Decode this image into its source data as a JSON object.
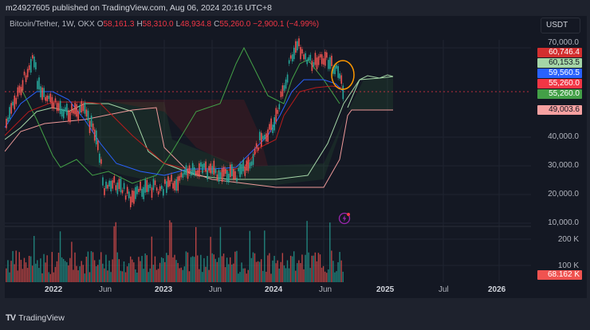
{
  "header": {
    "publish_line": "m24927605 published on TradingView.com, Aug 06, 2024 20:16 UTC+8"
  },
  "legend": {
    "symbol": "Bitcoin/Tether, 1W, OKX",
    "open_label": "O",
    "open": "58,161.3",
    "high_label": "H",
    "high": "58,310.0",
    "low_label": "L",
    "low": "48,934.8",
    "close_label": "C",
    "close": "55,260.0",
    "change": "−2,900.1 (−4.99%)"
  },
  "currency_button": {
    "label": "USDT"
  },
  "price_axis": {
    "ticks": [
      "70,000.0",
      "40,000.0",
      "30,000.0",
      "20,000.0",
      "10,000.0"
    ],
    "badges": [
      {
        "value": "60,746.4",
        "bg": "#d32f2f",
        "fg": "#ffffff"
      },
      {
        "value": "60,153.5",
        "bg": "#a5d6a7",
        "fg": "#131722"
      },
      {
        "value": "59,560.5",
        "bg": "#2962ff",
        "fg": "#ffffff"
      },
      {
        "value": "55,260.0",
        "bg": "#f23645",
        "fg": "#ffffff"
      },
      {
        "value": "55,260.0",
        "bg": "#43a047",
        "fg": "#ffffff"
      },
      {
        "value": "49,003.6",
        "bg": "#f7a1a1",
        "fg": "#131722"
      }
    ]
  },
  "volume_axis": {
    "ticks": [
      "200 K",
      "100 K"
    ],
    "badge": {
      "value": "68.162 K",
      "bg": "#f05350",
      "fg": "#ffffff"
    }
  },
  "time_axis": {
    "labels": [
      {
        "text": "2022",
        "year": true
      },
      {
        "text": "Jun",
        "year": false
      },
      {
        "text": "2023",
        "year": true
      },
      {
        "text": "Jun",
        "year": false
      },
      {
        "text": "2024",
        "year": true
      },
      {
        "text": "Jun",
        "year": false
      },
      {
        "text": "2025",
        "year": true
      },
      {
        "text": "Jul",
        "year": false
      },
      {
        "text": "2026",
        "year": true
      }
    ]
  },
  "colors": {
    "up": "#26a69a",
    "down": "#ef5350",
    "tenkan": "#2962ff",
    "kijun": "#b71c1c",
    "chikou": "#43a047",
    "span_a": "#a5d6a7",
    "span_b": "#ef9a9a",
    "highlight_circle": "#ff9800"
  },
  "footer": {
    "brand": "TradingView",
    "logo": "TV"
  }
}
